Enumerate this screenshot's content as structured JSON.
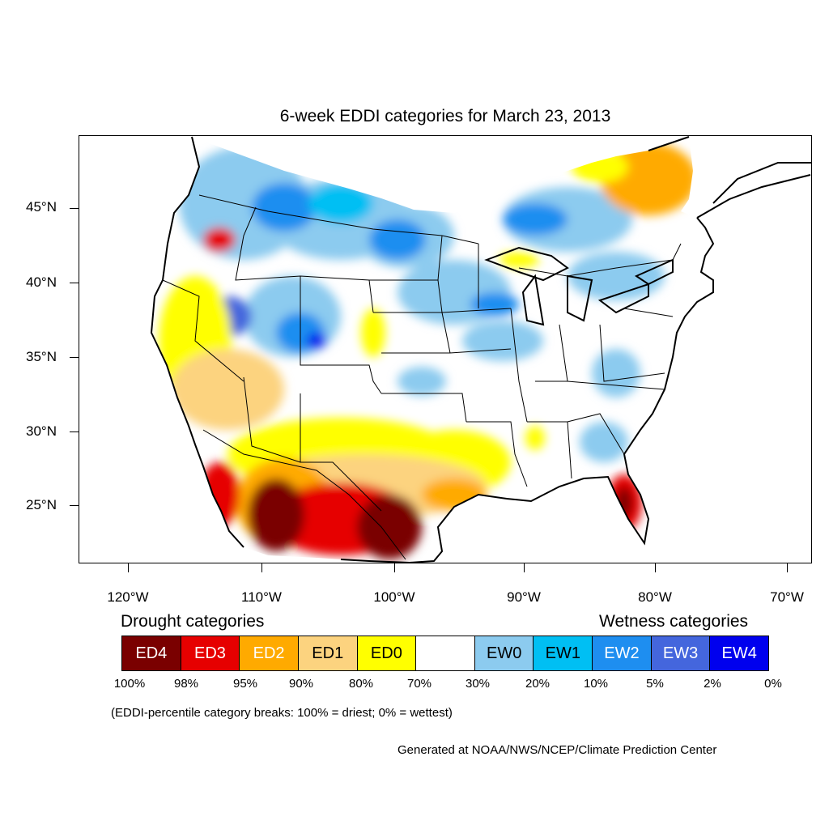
{
  "title": "6-week EDDI categories for March 23, 2013",
  "y_axis_ticks": [
    "45°N",
    "40°N",
    "35°N",
    "30°N",
    "25°N"
  ],
  "x_axis_ticks": [
    "120°W",
    "110°W",
    "100°W",
    "90°W",
    "80°W",
    "70°W"
  ],
  "legend": {
    "drought_heading": "Drought categories",
    "wetness_heading": "Wetness categories",
    "categories": [
      {
        "label": "ED4",
        "color": "#7a0000",
        "text_color": "#ffffff"
      },
      {
        "label": "ED3",
        "color": "#e60000",
        "text_color": "#ffffff"
      },
      {
        "label": "ED2",
        "color": "#ffaa00",
        "text_color": "#ffffff"
      },
      {
        "label": "ED1",
        "color": "#fcd37f",
        "text_color": "#000000"
      },
      {
        "label": "ED0",
        "color": "#ffff00",
        "text_color": "#000000"
      },
      {
        "label": "",
        "color": "#ffffff",
        "text_color": "#000000"
      },
      {
        "label": "EW0",
        "color": "#8ccbef",
        "text_color": "#000000"
      },
      {
        "label": "EW1",
        "color": "#00bff3",
        "text_color": "#000000"
      },
      {
        "label": "EW2",
        "color": "#1e8ef0",
        "text_color": "#ffffff"
      },
      {
        "label": "EW3",
        "color": "#4466dd",
        "text_color": "#ffffff"
      },
      {
        "label": "EW4",
        "color": "#0000ee",
        "text_color": "#ffffff"
      }
    ],
    "breaks": [
      "100%",
      "98%",
      "95%",
      "90%",
      "80%",
      "70%",
      "30%",
      "20%",
      "10%",
      "5%",
      "2%",
      "0%"
    ]
  },
  "note": "(EDDI-percentile category breaks: 100% = driest; 0% = wettest)",
  "credit": "Generated at NOAA/NWS/NCEP/Climate Prediction Center"
}
